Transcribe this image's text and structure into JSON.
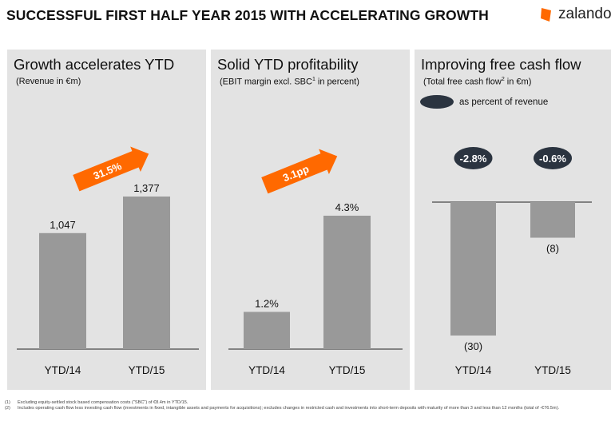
{
  "header": {
    "title": "SUCCESSFUL FIRST HALF YEAR 2015 WITH ACCELERATING GROWTH",
    "logo_text": "zalando",
    "brand_color": "#ff6900"
  },
  "panels": [
    {
      "title": "Growth accelerates YTD",
      "subtitle": "(Revenue in €m)"
    },
    {
      "title": "Solid YTD profitability",
      "subtitle_pre": "(EBIT margin excl. SBC",
      "subtitle_sup": "1",
      "subtitle_post": " in percent)"
    },
    {
      "title": "Improving free cash flow",
      "subtitle_pre": "(Total free cash flow",
      "subtitle_sup": "2",
      "subtitle_post": " in €m)",
      "legend_label": "as percent of revenue"
    }
  ],
  "chart_data": [
    {
      "type": "bar",
      "categories": [
        "YTD/14",
        "YTD/15"
      ],
      "values": [
        1047,
        1377
      ],
      "value_labels": [
        "1,047",
        "1,377"
      ],
      "ylim": [
        0,
        1377
      ],
      "annotation": "31.5%",
      "bar_color": "#999999"
    },
    {
      "type": "bar",
      "categories": [
        "YTD/14",
        "YTD/15"
      ],
      "values": [
        1.2,
        4.3
      ],
      "value_labels": [
        "1.2%",
        "4.3%"
      ],
      "ylim": [
        0,
        4.3
      ],
      "annotation": "3.1pp",
      "bar_color": "#999999"
    },
    {
      "type": "bar",
      "categories": [
        "YTD/14",
        "YTD/15"
      ],
      "values": [
        -30,
        -8
      ],
      "value_labels": [
        "(30)",
        "(8)"
      ],
      "ylim": [
        -30,
        0
      ],
      "badges": [
        "-2.8%",
        "-0.6%"
      ],
      "bar_color": "#999999"
    }
  ],
  "footnotes": [
    {
      "num": "(1)",
      "text": "Excluding equity-settled stock based compensation costs (\"SBC\") of €8.4m in YTD/15."
    },
    {
      "num": "(2)",
      "text": "Includes operating cash flow less investing cash flow (investments in fixed, intangible assets and payments for acquisitions); excludes changes in restricted cash and investments into short-term deposits with maturity of more than 3 and less than 12 months (total of -€76.5m)."
    }
  ]
}
